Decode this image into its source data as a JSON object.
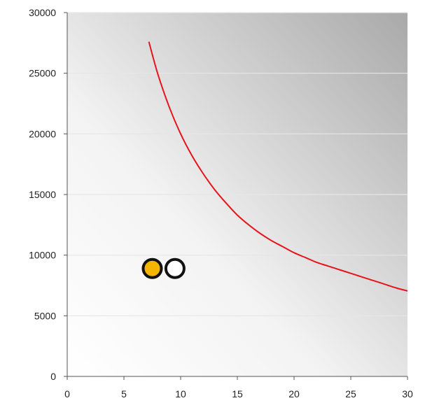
{
  "chart_data": {
    "type": "scatter",
    "title": "",
    "xlabel": "",
    "ylabel": "",
    "xlim": [
      0,
      30
    ],
    "ylim": [
      0,
      30000
    ],
    "x_ticks": [
      0,
      5,
      10,
      15,
      20,
      25,
      30
    ],
    "y_ticks": [
      0,
      5000,
      10000,
      15000,
      20000,
      25000,
      30000
    ],
    "x_tick_labels": [
      "0",
      "5",
      "10",
      "15",
      "20",
      "25",
      "30"
    ],
    "y_tick_labels": [
      "0",
      "5000",
      "10000",
      "15000",
      "20000",
      "25000",
      "30000"
    ],
    "grid": "horizontal",
    "legend": "none",
    "series": [
      {
        "kind": "line",
        "color": "#e8141c",
        "x": [
          7.2,
          8,
          9,
          10,
          11,
          12,
          13,
          14,
          15,
          16,
          17,
          18,
          19,
          20,
          21,
          22,
          23,
          24,
          25,
          26,
          27,
          28,
          29,
          30
        ],
        "y": [
          27600,
          24900,
          22200,
          20000,
          18200,
          16700,
          15400,
          14300,
          13300,
          12500,
          11800,
          11200,
          10700,
          10200,
          9800,
          9400,
          9100,
          8800,
          8500,
          8200,
          7900,
          7600,
          7300,
          7050
        ]
      },
      {
        "kind": "points",
        "points": [
          {
            "x": 7.5,
            "y": 8900,
            "fill": "#f4b400"
          },
          {
            "x": 9.5,
            "y": 8900,
            "fill": "#ffffff"
          }
        ]
      }
    ],
    "colors": {
      "plot_bg_light": "#ffffff",
      "plot_bg_dark": "#a8a8a8",
      "gridline": "#e6e6e6",
      "axis": "#555555",
      "marker_stroke": "#111111"
    }
  }
}
